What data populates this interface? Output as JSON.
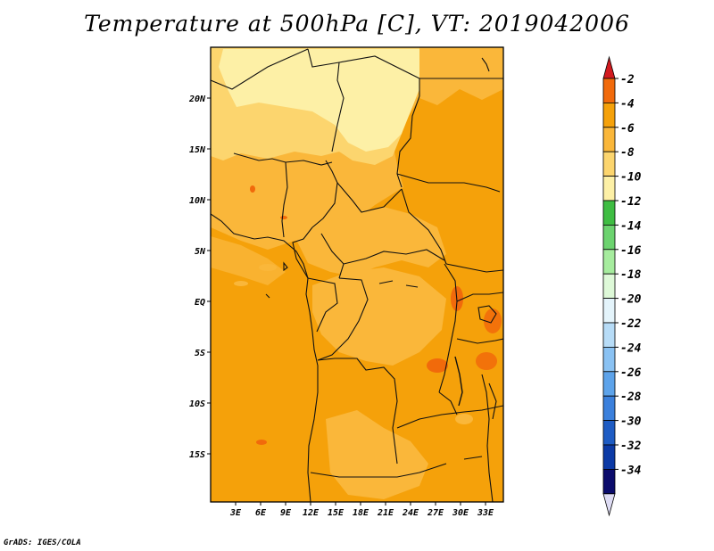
{
  "title": "Temperature at 500hPa [C], VT: 2019042006",
  "credit": "GrADS: IGES/COLA",
  "map": {
    "variable": "Temperature at 500hPa",
    "units": "C",
    "valid_time": "2019042006",
    "lat_labels": [
      "20N",
      "15N",
      "10N",
      "5N",
      "EQ",
      "5S",
      "10S",
      "15S"
    ],
    "lon_labels": [
      "3E",
      "6E",
      "9E",
      "12E",
      "15E",
      "18E",
      "21E",
      "24E",
      "27E",
      "30E",
      "33E"
    ],
    "dominant_range": "-6 to -4"
  },
  "colorbar": {
    "labels": [
      "-2",
      "-4",
      "-6",
      "-8",
      "-10",
      "-12",
      "-14",
      "-16",
      "-18",
      "-20",
      "-22",
      "-24",
      "-26",
      "-28",
      "-30",
      "-32",
      "-34"
    ],
    "colors": [
      "#d21a1f",
      "#f16a0b",
      "#f5a10a",
      "#fab73a",
      "#fcd56e",
      "#fdf0a6",
      "#3fbd43",
      "#6cd36f",
      "#a6ec9e",
      "#def9d8",
      "#e4f4fb",
      "#b7dcf7",
      "#8ac2f3",
      "#5da3ea",
      "#3b80dc",
      "#1e5cc4",
      "#0c3aa6",
      "#0b0c6c",
      "#dedcf4"
    ]
  },
  "colors": {
    "base": "#f5a10a",
    "warm": "#f16a0b",
    "light": "#fab73a",
    "pale": "#fcd56e",
    "palest": "#fdf0a6"
  }
}
